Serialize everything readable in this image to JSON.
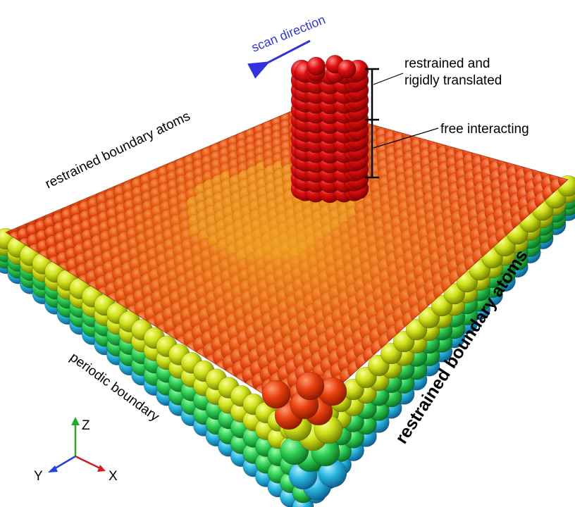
{
  "labels": {
    "scan_direction": "scan direction",
    "restrained_top_line1": "restrained and",
    "restrained_top_line2": "rigidly translated",
    "free_interacting": "free interacting",
    "restrained_boundary_back": "restrained boundary atoms",
    "restrained_boundary_right": "restrained boundary atoms",
    "periodic_boundary": "periodic boundary"
  },
  "axes": {
    "z": "Z",
    "y": "Y",
    "x": "X"
  },
  "colors": {
    "scan_arrow": "#3333dd",
    "slab_top": "#e0400c",
    "slab_center": "#e88a10",
    "layer_yellow": "#d8e81a",
    "layer_green": "#2fcf55",
    "layer_cyan": "#2ab8e0",
    "tip": "#dd1111",
    "axis_z": "#22aa22",
    "axis_y": "#2244dd",
    "axis_x": "#cc2222"
  }
}
